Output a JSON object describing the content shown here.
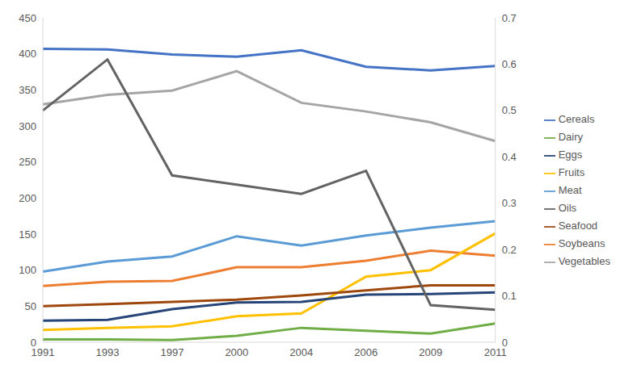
{
  "chart_data": {
    "type": "line",
    "categories": [
      "1991",
      "1993",
      "1997",
      "2000",
      "2004",
      "2006",
      "2009",
      "2011"
    ],
    "ylim": [
      0,
      450
    ],
    "yticks": [
      0,
      50,
      100,
      150,
      200,
      250,
      300,
      350,
      400,
      450
    ],
    "y2lim": [
      0,
      0.7
    ],
    "y2ticks": [
      0,
      0.1,
      0.2,
      0.3,
      0.4,
      0.5,
      0.6,
      0.7
    ],
    "grid": false,
    "legend": "right",
    "series": [
      {
        "name": "Cereals",
        "color": "#4472C4",
        "values": [
          407,
          406,
          399,
          396,
          405,
          382,
          377,
          383
        ]
      },
      {
        "name": "Soybeans",
        "color": "#ED7D31",
        "values": [
          78,
          84,
          85,
          104,
          104,
          113,
          127,
          120
        ]
      },
      {
        "name": "Vegetables",
        "color": "#A5A5A5",
        "values": [
          330,
          343,
          349,
          376,
          332,
          320,
          305,
          279
        ]
      },
      {
        "name": "Fruits",
        "color": "#FFC000",
        "values": [
          17,
          20,
          22,
          36,
          40,
          91,
          100,
          151
        ]
      },
      {
        "name": "Meat",
        "color": "#5B9BD5",
        "values": [
          98,
          112,
          119,
          147,
          134,
          148,
          159,
          168
        ]
      },
      {
        "name": "Dairy",
        "color": "#70AD47",
        "values": [
          4,
          4,
          3,
          9,
          20,
          16,
          12,
          26
        ]
      },
      {
        "name": "Eggs",
        "color": "#264478",
        "values": [
          30,
          31,
          46,
          55,
          56,
          66,
          67,
          69
        ]
      },
      {
        "name": "Seafood",
        "color": "#9E480E",
        "values": [
          50,
          53,
          56,
          59,
          65,
          72,
          79,
          79
        ]
      },
      {
        "name": "Oils",
        "color": "#636363",
        "axis": "y2",
        "values": [
          0.5,
          0.61,
          0.36,
          0.34,
          0.32,
          0.37,
          0.08,
          0.07
        ]
      }
    ]
  }
}
